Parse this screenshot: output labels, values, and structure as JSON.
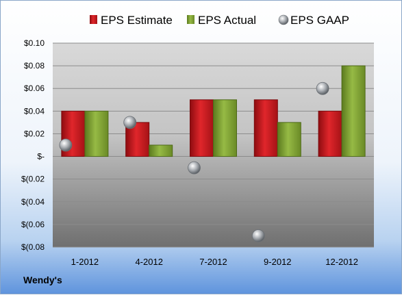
{
  "company": "Wendy's",
  "chart_data": {
    "type": "bar",
    "categories": [
      "1-2012",
      "4-2012",
      "7-2012",
      "9-2012",
      "12-2012"
    ],
    "series": [
      {
        "name": "EPS Estimate",
        "kind": "bar",
        "color": "#c8161b",
        "values": [
          0.04,
          0.03,
          0.05,
          0.05,
          0.04
        ]
      },
      {
        "name": "EPS Actual",
        "kind": "bar",
        "color": "#7ea032",
        "values": [
          0.04,
          0.01,
          0.05,
          0.03,
          0.08
        ]
      },
      {
        "name": "EPS GAAP",
        "kind": "marker",
        "color": "#9aa0a6",
        "values": [
          0.01,
          0.03,
          -0.01,
          -0.07,
          0.06
        ]
      }
    ],
    "ylim": [
      -0.08,
      0.1
    ],
    "y_ticks": [
      0.1,
      0.08,
      0.06,
      0.04,
      0.02,
      0.0,
      -0.02,
      -0.04,
      -0.06,
      -0.08
    ],
    "y_tick_labels": [
      "$0.10",
      "$0.08",
      "$0.06",
      "$0.04",
      "$0.02",
      "$-",
      "$(0.02",
      "$(0.04",
      "$(0.06",
      "$(0.08"
    ],
    "grid": true,
    "legend": "top"
  }
}
